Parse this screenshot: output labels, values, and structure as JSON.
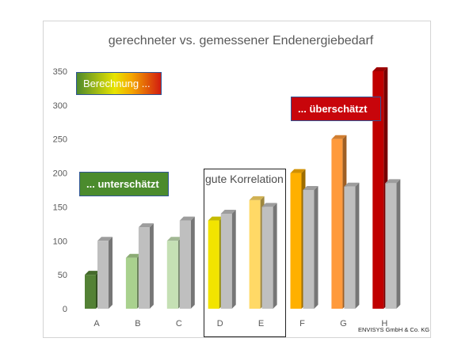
{
  "chart_data": {
    "type": "bar",
    "title": "gerechneter vs. gemessener Endenergiebedarf",
    "categories": [
      "A",
      "B",
      "C",
      "D",
      "E",
      "F",
      "G",
      "H"
    ],
    "series": [
      {
        "values": [
          50,
          75,
          100,
          130,
          160,
          200,
          250,
          350
        ],
        "colors": [
          "#538135",
          "#a9d18e",
          "#c5e0b4",
          "#f2e400",
          "#ffd966",
          "#ffb000",
          "#ff9a3c",
          "#c00000"
        ]
      },
      {
        "values": [
          100,
          120,
          130,
          140,
          150,
          175,
          180,
          185
        ],
        "colors": [
          "#bfbfbf",
          "#bfbfbf",
          "#bfbfbf",
          "#bfbfbf",
          "#bfbfbf",
          "#bfbfbf",
          "#bfbfbf",
          "#bfbfbf"
        ]
      }
    ],
    "yticks": [
      0,
      50,
      100,
      150,
      200,
      250,
      300,
      350
    ],
    "ylim": [
      0,
      350
    ],
    "grid": false,
    "legend": "none"
  },
  "annotations": {
    "berechnung": "Berechnung ...",
    "unterschaetzt": "... unterschätzt",
    "ueberschaetzt": "... überschätzt",
    "gute_korrelation": "gute Korrelation"
  },
  "credit": "ENVISYS GmbH & Co. KG"
}
